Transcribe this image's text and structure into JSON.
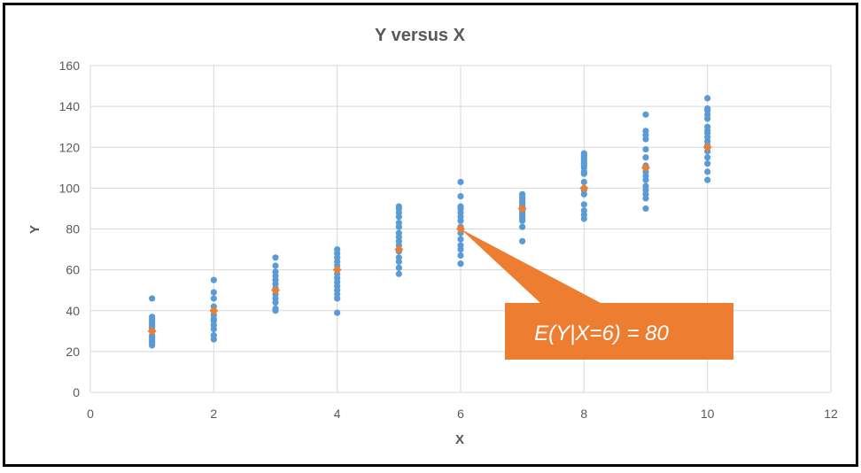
{
  "chart_data": {
    "type": "scatter",
    "title": "Y versus X",
    "xlabel": "X",
    "ylabel": "Y",
    "xlim": [
      0,
      12
    ],
    "ylim": [
      0,
      160
    ],
    "xticks": [
      0,
      2,
      4,
      6,
      8,
      10,
      12
    ],
    "yticks": [
      0,
      20,
      40,
      60,
      80,
      100,
      120,
      140,
      160
    ],
    "grid": true,
    "legend": "none",
    "colors": {
      "observations": "#5b9bd5",
      "means": "#ed7d31",
      "callout": "#ed7d31",
      "grid": "#d9d9d9"
    },
    "series": [
      {
        "role": "observations",
        "points": [
          [
            1,
            23
          ],
          [
            1,
            24
          ],
          [
            1,
            25
          ],
          [
            1,
            26
          ],
          [
            1,
            27
          ],
          [
            1,
            28
          ],
          [
            1,
            31
          ],
          [
            1,
            32
          ],
          [
            1,
            33
          ],
          [
            1,
            34
          ],
          [
            1,
            35
          ],
          [
            1,
            36
          ],
          [
            1,
            37
          ],
          [
            1,
            46
          ],
          [
            2,
            26
          ],
          [
            2,
            28
          ],
          [
            2,
            31
          ],
          [
            2,
            33
          ],
          [
            2,
            35
          ],
          [
            2,
            36
          ],
          [
            2,
            38
          ],
          [
            2,
            42
          ],
          [
            2,
            46
          ],
          [
            2,
            49
          ],
          [
            2,
            55
          ],
          [
            3,
            40
          ],
          [
            3,
            41
          ],
          [
            3,
            44
          ],
          [
            3,
            46
          ],
          [
            3,
            48
          ],
          [
            3,
            51
          ],
          [
            3,
            53
          ],
          [
            3,
            55
          ],
          [
            3,
            57
          ],
          [
            3,
            59
          ],
          [
            3,
            62
          ],
          [
            3,
            66
          ],
          [
            4,
            39
          ],
          [
            4,
            46
          ],
          [
            4,
            48
          ],
          [
            4,
            50
          ],
          [
            4,
            52
          ],
          [
            4,
            54
          ],
          [
            4,
            56
          ],
          [
            4,
            58
          ],
          [
            4,
            62
          ],
          [
            4,
            64
          ],
          [
            4,
            66
          ],
          [
            4,
            68
          ],
          [
            4,
            70
          ],
          [
            5,
            58
          ],
          [
            5,
            61
          ],
          [
            5,
            64
          ],
          [
            5,
            66
          ],
          [
            5,
            69
          ],
          [
            5,
            72
          ],
          [
            5,
            74
          ],
          [
            5,
            76
          ],
          [
            5,
            78
          ],
          [
            5,
            81
          ],
          [
            5,
            83
          ],
          [
            5,
            86
          ],
          [
            5,
            88
          ],
          [
            5,
            90
          ],
          [
            5,
            91
          ],
          [
            6,
            63
          ],
          [
            6,
            67
          ],
          [
            6,
            70
          ],
          [
            6,
            72
          ],
          [
            6,
            75
          ],
          [
            6,
            78
          ],
          [
            6,
            81
          ],
          [
            6,
            84
          ],
          [
            6,
            86
          ],
          [
            6,
            88
          ],
          [
            6,
            90
          ],
          [
            6,
            91
          ],
          [
            6,
            96
          ],
          [
            6,
            103
          ],
          [
            7,
            74
          ],
          [
            7,
            81
          ],
          [
            7,
            84
          ],
          [
            7,
            85
          ],
          [
            7,
            86
          ],
          [
            7,
            87
          ],
          [
            7,
            88
          ],
          [
            7,
            89
          ],
          [
            7,
            91
          ],
          [
            7,
            92
          ],
          [
            7,
            93
          ],
          [
            7,
            94
          ],
          [
            7,
            95
          ],
          [
            7,
            96
          ],
          [
            7,
            97
          ],
          [
            8,
            85
          ],
          [
            8,
            87
          ],
          [
            8,
            89
          ],
          [
            8,
            92
          ],
          [
            8,
            97
          ],
          [
            8,
            99
          ],
          [
            8,
            103
          ],
          [
            8,
            107
          ],
          [
            8,
            108
          ],
          [
            8,
            110
          ],
          [
            8,
            111
          ],
          [
            8,
            112
          ],
          [
            8,
            113
          ],
          [
            8,
            114
          ],
          [
            8,
            115
          ],
          [
            8,
            116
          ],
          [
            8,
            117
          ],
          [
            9,
            90
          ],
          [
            9,
            95
          ],
          [
            9,
            97
          ],
          [
            9,
            99
          ],
          [
            9,
            101
          ],
          [
            9,
            104
          ],
          [
            9,
            106
          ],
          [
            9,
            108
          ],
          [
            9,
            111
          ],
          [
            9,
            115
          ],
          [
            9,
            119
          ],
          [
            9,
            124
          ],
          [
            9,
            126
          ],
          [
            9,
            128
          ],
          [
            9,
            136
          ],
          [
            10,
            104
          ],
          [
            10,
            108
          ],
          [
            10,
            112
          ],
          [
            10,
            115
          ],
          [
            10,
            118
          ],
          [
            10,
            121
          ],
          [
            10,
            123
          ],
          [
            10,
            125
          ],
          [
            10,
            127
          ],
          [
            10,
            128
          ],
          [
            10,
            130
          ],
          [
            10,
            134
          ],
          [
            10,
            136
          ],
          [
            10,
            138
          ],
          [
            10,
            139
          ],
          [
            10,
            144
          ]
        ]
      },
      {
        "role": "means",
        "points": [
          [
            1,
            30
          ],
          [
            2,
            40
          ],
          [
            3,
            50
          ],
          [
            4,
            60
          ],
          [
            5,
            70
          ],
          [
            6,
            80
          ],
          [
            7,
            90
          ],
          [
            8,
            100
          ],
          [
            9,
            110
          ],
          [
            10,
            120
          ]
        ]
      }
    ],
    "annotation": {
      "text": "E(Y|X=6) = 80",
      "points_to": [
        6,
        80
      ]
    }
  }
}
